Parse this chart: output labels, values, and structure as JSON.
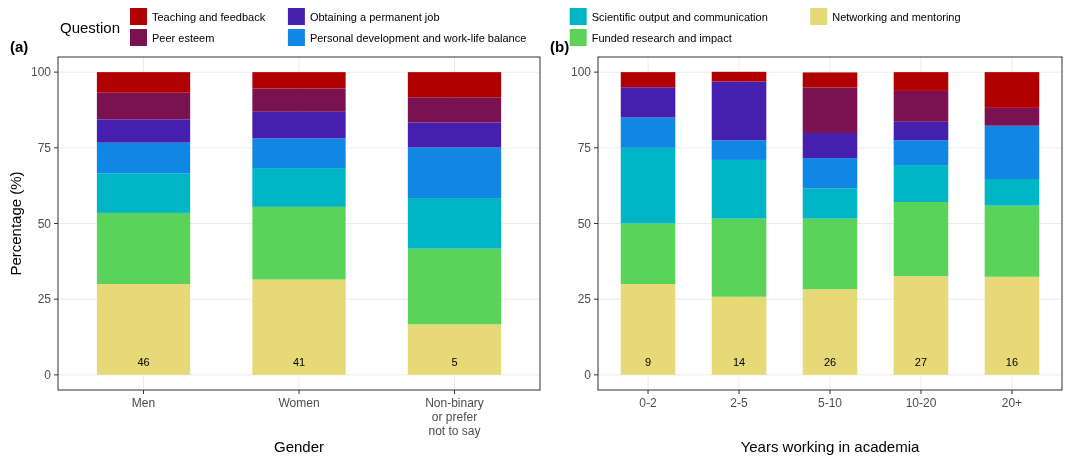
{
  "chart_data": [
    {
      "type": "bar",
      "title": "(a)",
      "xlabel": "Gender",
      "ylabel": "Percentage (%)",
      "legend_title": "Question",
      "legend": "top",
      "stacked": true,
      "grid": true,
      "categories": [
        "Men",
        "Women",
        "Non-binary\nor prefer\nnot to say"
      ],
      "ylim": [
        -5,
        105
      ],
      "yticks": [
        0,
        25,
        50,
        75,
        100
      ],
      "series": [
        {
          "name": "Networking and mentoring",
          "color": "#e8d978",
          "values": [
            30.0,
            31.5,
            16.7
          ]
        },
        {
          "name": "Funded research and impact",
          "color": "#5bd35b",
          "values": [
            23.5,
            24.0,
            25.0
          ]
        },
        {
          "name": "Scientific output and communication",
          "color": "#00b5c5",
          "values": [
            13.1,
            12.8,
            16.7
          ]
        },
        {
          "name": "Personal development and work-life balance",
          "color": "#0f87e3",
          "values": [
            10.1,
            9.8,
            16.7
          ]
        },
        {
          "name": "Obtaining a permanent job",
          "color": "#4520ae",
          "values": [
            7.7,
            8.8,
            8.3
          ]
        },
        {
          "name": "Peer esteem",
          "color": "#7a1252",
          "values": [
            8.8,
            7.7,
            8.3
          ]
        },
        {
          "name": "Teaching and feedback",
          "color": "#b00000",
          "values": [
            6.8,
            5.4,
            8.3
          ]
        }
      ],
      "annotations": [
        "46",
        "41",
        "5"
      ]
    },
    {
      "type": "bar",
      "title": "(b)",
      "xlabel": "Years working in academia",
      "stacked": true,
      "grid": true,
      "categories": [
        "0-2",
        "2-5",
        "5-10",
        "10-20",
        "20+"
      ],
      "ylim": [
        -5,
        105
      ],
      "yticks": [
        0,
        25,
        50,
        75,
        100
      ],
      "series": [
        {
          "color": "#e8d978",
          "values": [
            30.0,
            25.8,
            28.3,
            32.6,
            32.4
          ]
        },
        {
          "color": "#5bd35b",
          "values": [
            20.0,
            25.8,
            23.3,
            24.5,
            23.5
          ]
        },
        {
          "color": "#00b5c5",
          "values": [
            25.0,
            19.4,
            10.0,
            12.2,
            8.8
          ]
        },
        {
          "color": "#0f87e3",
          "values": [
            10.0,
            6.5,
            10.0,
            8.2,
            17.6
          ]
        },
        {
          "color": "#4520ae",
          "values": [
            10.0,
            19.4,
            8.3,
            6.1,
            0
          ]
        },
        {
          "color": "#7a1252",
          "values": [
            0,
            0,
            15.0,
            10.2,
            5.9
          ]
        },
        {
          "color": "#b00000",
          "values": [
            5.0,
            3.2,
            5.0,
            6.2,
            11.8
          ]
        }
      ],
      "annotations": [
        "9",
        "14",
        "26",
        "27",
        "16"
      ]
    }
  ]
}
